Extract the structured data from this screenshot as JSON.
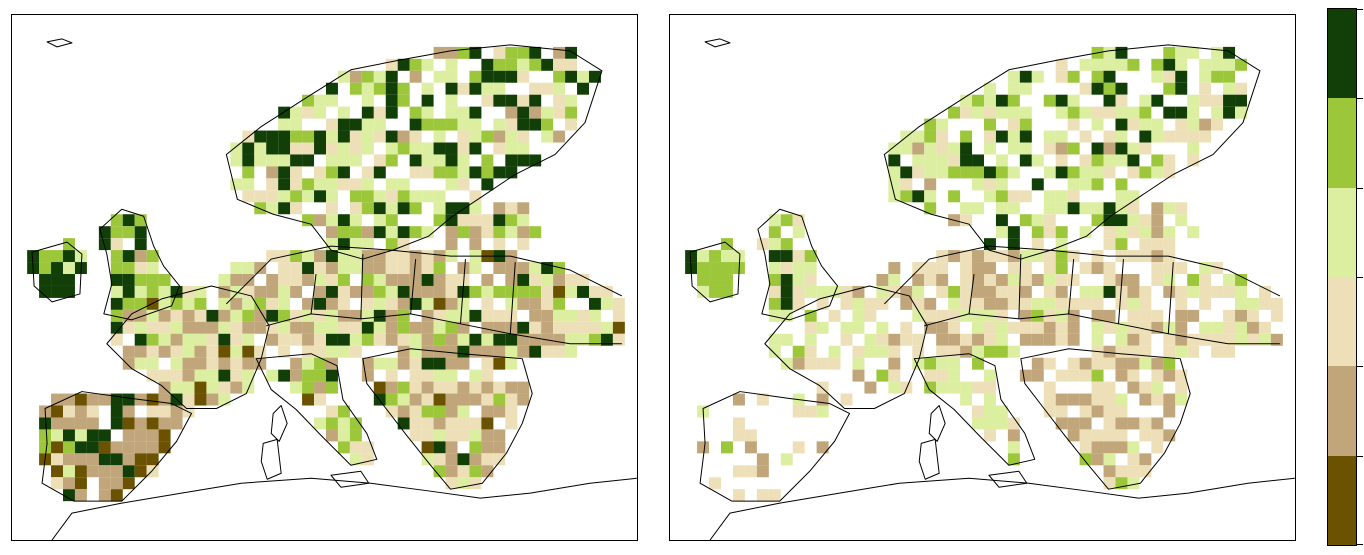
{
  "palette": {
    "class1": "#6b5200",
    "class2": "#c0a67a",
    "class3": "#ede0b8",
    "class4": "#dceea0",
    "class5": "#9cc73a",
    "class6": "#123f08",
    "coast_line": "#000000",
    "background": "#ffffff"
  },
  "colorbar": {
    "classes": [
      "class6",
      "class5",
      "class4",
      "class3",
      "class2",
      "class1"
    ],
    "tick_labels": []
  },
  "maps": [
    {
      "name": "left-map",
      "region": "Europe",
      "projection": "conic",
      "grid_cell_classes_present": [
        "class1",
        "class2",
        "class3",
        "class4",
        "class5",
        "class6"
      ]
    },
    {
      "name": "right-map",
      "region": "Europe",
      "projection": "conic",
      "grid_cell_classes_present": [
        "class2",
        "class3",
        "class4",
        "class5",
        "class6"
      ]
    }
  ]
}
